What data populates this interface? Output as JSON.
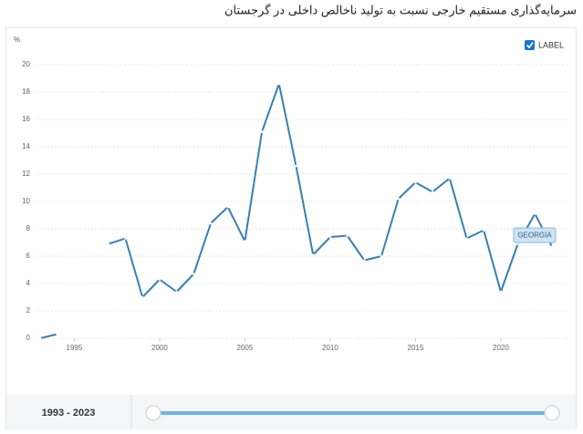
{
  "chart_data": {
    "type": "line",
    "title": "سرمایه‌گذاری مستقیم خارجی نسبت به تولید ناخالص داخلی در گرجستان",
    "y_unit": "%",
    "x": [
      1993,
      1994,
      1995,
      1996,
      1997,
      1998,
      1999,
      2000,
      2001,
      2002,
      2003,
      2004,
      2005,
      2006,
      2007,
      2008,
      2009,
      2010,
      2011,
      2012,
      2013,
      2014,
      2015,
      2016,
      2017,
      2018,
      2019,
      2020,
      2021,
      2022,
      2023
    ],
    "series": [
      {
        "name": "LABEL",
        "color": "#3a7fb2",
        "values": [
          0.0,
          0.3,
          null,
          null,
          6.9,
          7.3,
          3.0,
          4.3,
          3.4,
          4.7,
          8.4,
          9.6,
          7.1,
          15.1,
          18.6,
          12.6,
          6.1,
          7.4,
          7.5,
          5.7,
          6.0,
          10.2,
          11.4,
          10.7,
          11.7,
          7.3,
          7.9,
          3.4,
          6.9,
          9.1,
          6.7
        ]
      }
    ],
    "annotation": "GEORGIA",
    "range_label": "1993 - 2023",
    "xlim": [
      1993,
      2023
    ],
    "xticks": [
      1995,
      2000,
      2005,
      2010,
      2015,
      2020
    ],
    "ylim": [
      0,
      20
    ],
    "yticks": [
      0,
      2,
      4,
      6,
      8,
      10,
      12,
      14,
      16,
      18,
      20
    ],
    "grid": true
  }
}
